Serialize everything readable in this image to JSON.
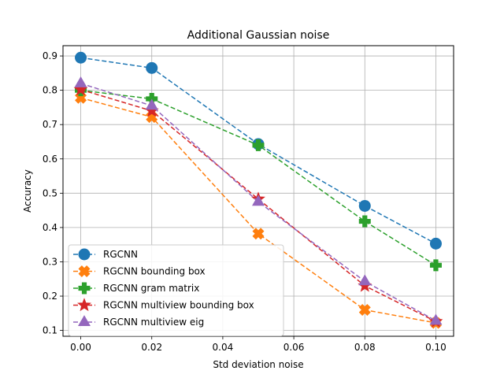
{
  "chart_data": {
    "type": "line",
    "title": "Additional Gaussian noise",
    "xlabel": "Std deviation noise",
    "ylabel": "Accuracy",
    "xlim": [
      -0.005,
      0.105
    ],
    "ylim": [
      0.083,
      0.93
    ],
    "xticks": [
      0.0,
      0.02,
      0.04,
      0.06,
      0.08,
      0.1
    ],
    "xtick_labels": [
      "0.00",
      "0.02",
      "0.04",
      "0.06",
      "0.08",
      "0.10"
    ],
    "yticks": [
      0.1,
      0.2,
      0.3,
      0.4,
      0.5,
      0.6,
      0.7,
      0.8,
      0.9
    ],
    "ytick_labels": [
      "0.1",
      "0.2",
      "0.3",
      "0.4",
      "0.5",
      "0.6",
      "0.7",
      "0.8",
      "0.9"
    ],
    "grid": true,
    "legend_position": "lower-left",
    "x": [
      0.0,
      0.02,
      0.05,
      0.08,
      0.1
    ],
    "series": [
      {
        "name": "RGCNN",
        "values": [
          0.895,
          0.865,
          0.643,
          0.463,
          0.353
        ],
        "color": "#1f77b4",
        "marker": "circle"
      },
      {
        "name": "RGCNN bounding box",
        "values": [
          0.778,
          0.722,
          0.382,
          0.16,
          0.122
        ],
        "color": "#ff7f0e",
        "marker": "x-filled"
      },
      {
        "name": "RGCNN gram matrix",
        "values": [
          0.8,
          0.775,
          0.64,
          0.418,
          0.29
        ],
        "color": "#2ca02c",
        "marker": "plus-filled"
      },
      {
        "name": "RGCNN multiview bounding box",
        "values": [
          0.802,
          0.74,
          0.483,
          0.23,
          0.126
        ],
        "color": "#d62728",
        "marker": "star"
      },
      {
        "name": "RGCNN multiview eig",
        "values": [
          0.82,
          0.755,
          0.475,
          0.243,
          0.128
        ],
        "color": "#9467bd",
        "marker": "triangle"
      }
    ]
  }
}
